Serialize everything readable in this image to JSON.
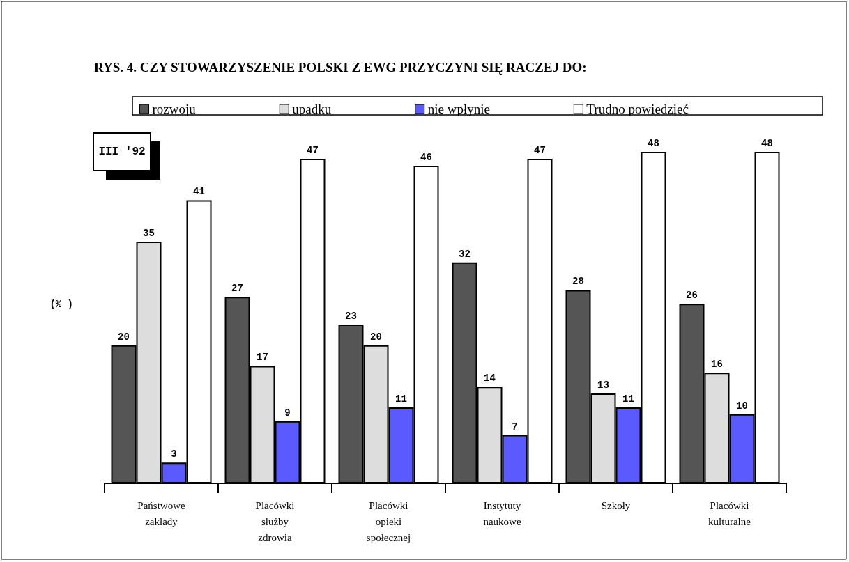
{
  "chart_data": {
    "type": "bar",
    "title": "RYS. 4. CZY STOWARZYSZENIE POLSKI Z EWG PRZYCZYNI SIĘ RACZEJ DO:",
    "ylabel": "(% )",
    "annotations": [
      "III '92"
    ],
    "categories": [
      "Państwowe\nzakłady",
      "Placówki\nsłużby\nzdrowia",
      "Placówki\nopieki\nspołecznej",
      "Instytuty\nnaukowe",
      "Szkoły",
      "Placówki\nkulturalne"
    ],
    "series": [
      {
        "name": "rozwoju",
        "color": "#555555",
        "values": [
          20,
          27,
          23,
          32,
          28,
          26
        ]
      },
      {
        "name": "upadku",
        "color": "#dddddd",
        "values": [
          35,
          17,
          20,
          14,
          13,
          16
        ]
      },
      {
        "name": "nie wpłynie",
        "color": "#5a5aff",
        "values": [
          3,
          9,
          11,
          7,
          11,
          10
        ]
      },
      {
        "name": "Trudno powiedzieć",
        "color": "#ffffff",
        "values": [
          41,
          47,
          46,
          47,
          48,
          48
        ]
      }
    ],
    "data_labels": true,
    "legend": "top",
    "grid": false
  }
}
